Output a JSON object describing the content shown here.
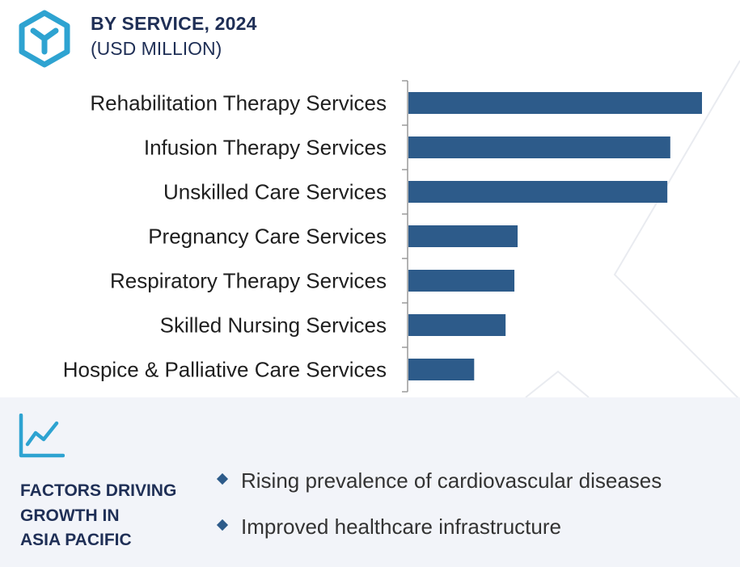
{
  "header": {
    "title": "BY SERVICE, 2024",
    "subtitle": "(USD MILLION)"
  },
  "icons": {
    "logo": "hexagon-y-logo-icon",
    "trend": "trend-line-chart-icon",
    "bullet": "diamond-bullet-icon"
  },
  "colors": {
    "bar": "#2d5b8a",
    "title": "#1f2f56",
    "logo": "#2ea3d1",
    "footer_bg": "#f2f4f9"
  },
  "chart_data": {
    "type": "bar",
    "orientation": "horizontal",
    "categories": [
      "Rehabilitation Therapy Services",
      "Infusion Therapy Services",
      "Unskilled Care Services",
      "Pregnancy Care Services",
      "Respiratory Therapy Services",
      "Skilled Nursing Services",
      "Hospice & Palliative Care Services"
    ],
    "values": [
      100,
      89.2,
      88.2,
      37.2,
      36.1,
      33.1,
      22.4
    ],
    "xlim": [
      0,
      100
    ],
    "grid": false,
    "legend": "none"
  },
  "footer": {
    "factors_title_lines": [
      "FACTORS DRIVING",
      "GROWTH IN",
      "ASIA PACIFIC"
    ],
    "factors": [
      "Rising prevalence of cardiovascular diseases",
      "Improved healthcare infrastructure"
    ]
  }
}
